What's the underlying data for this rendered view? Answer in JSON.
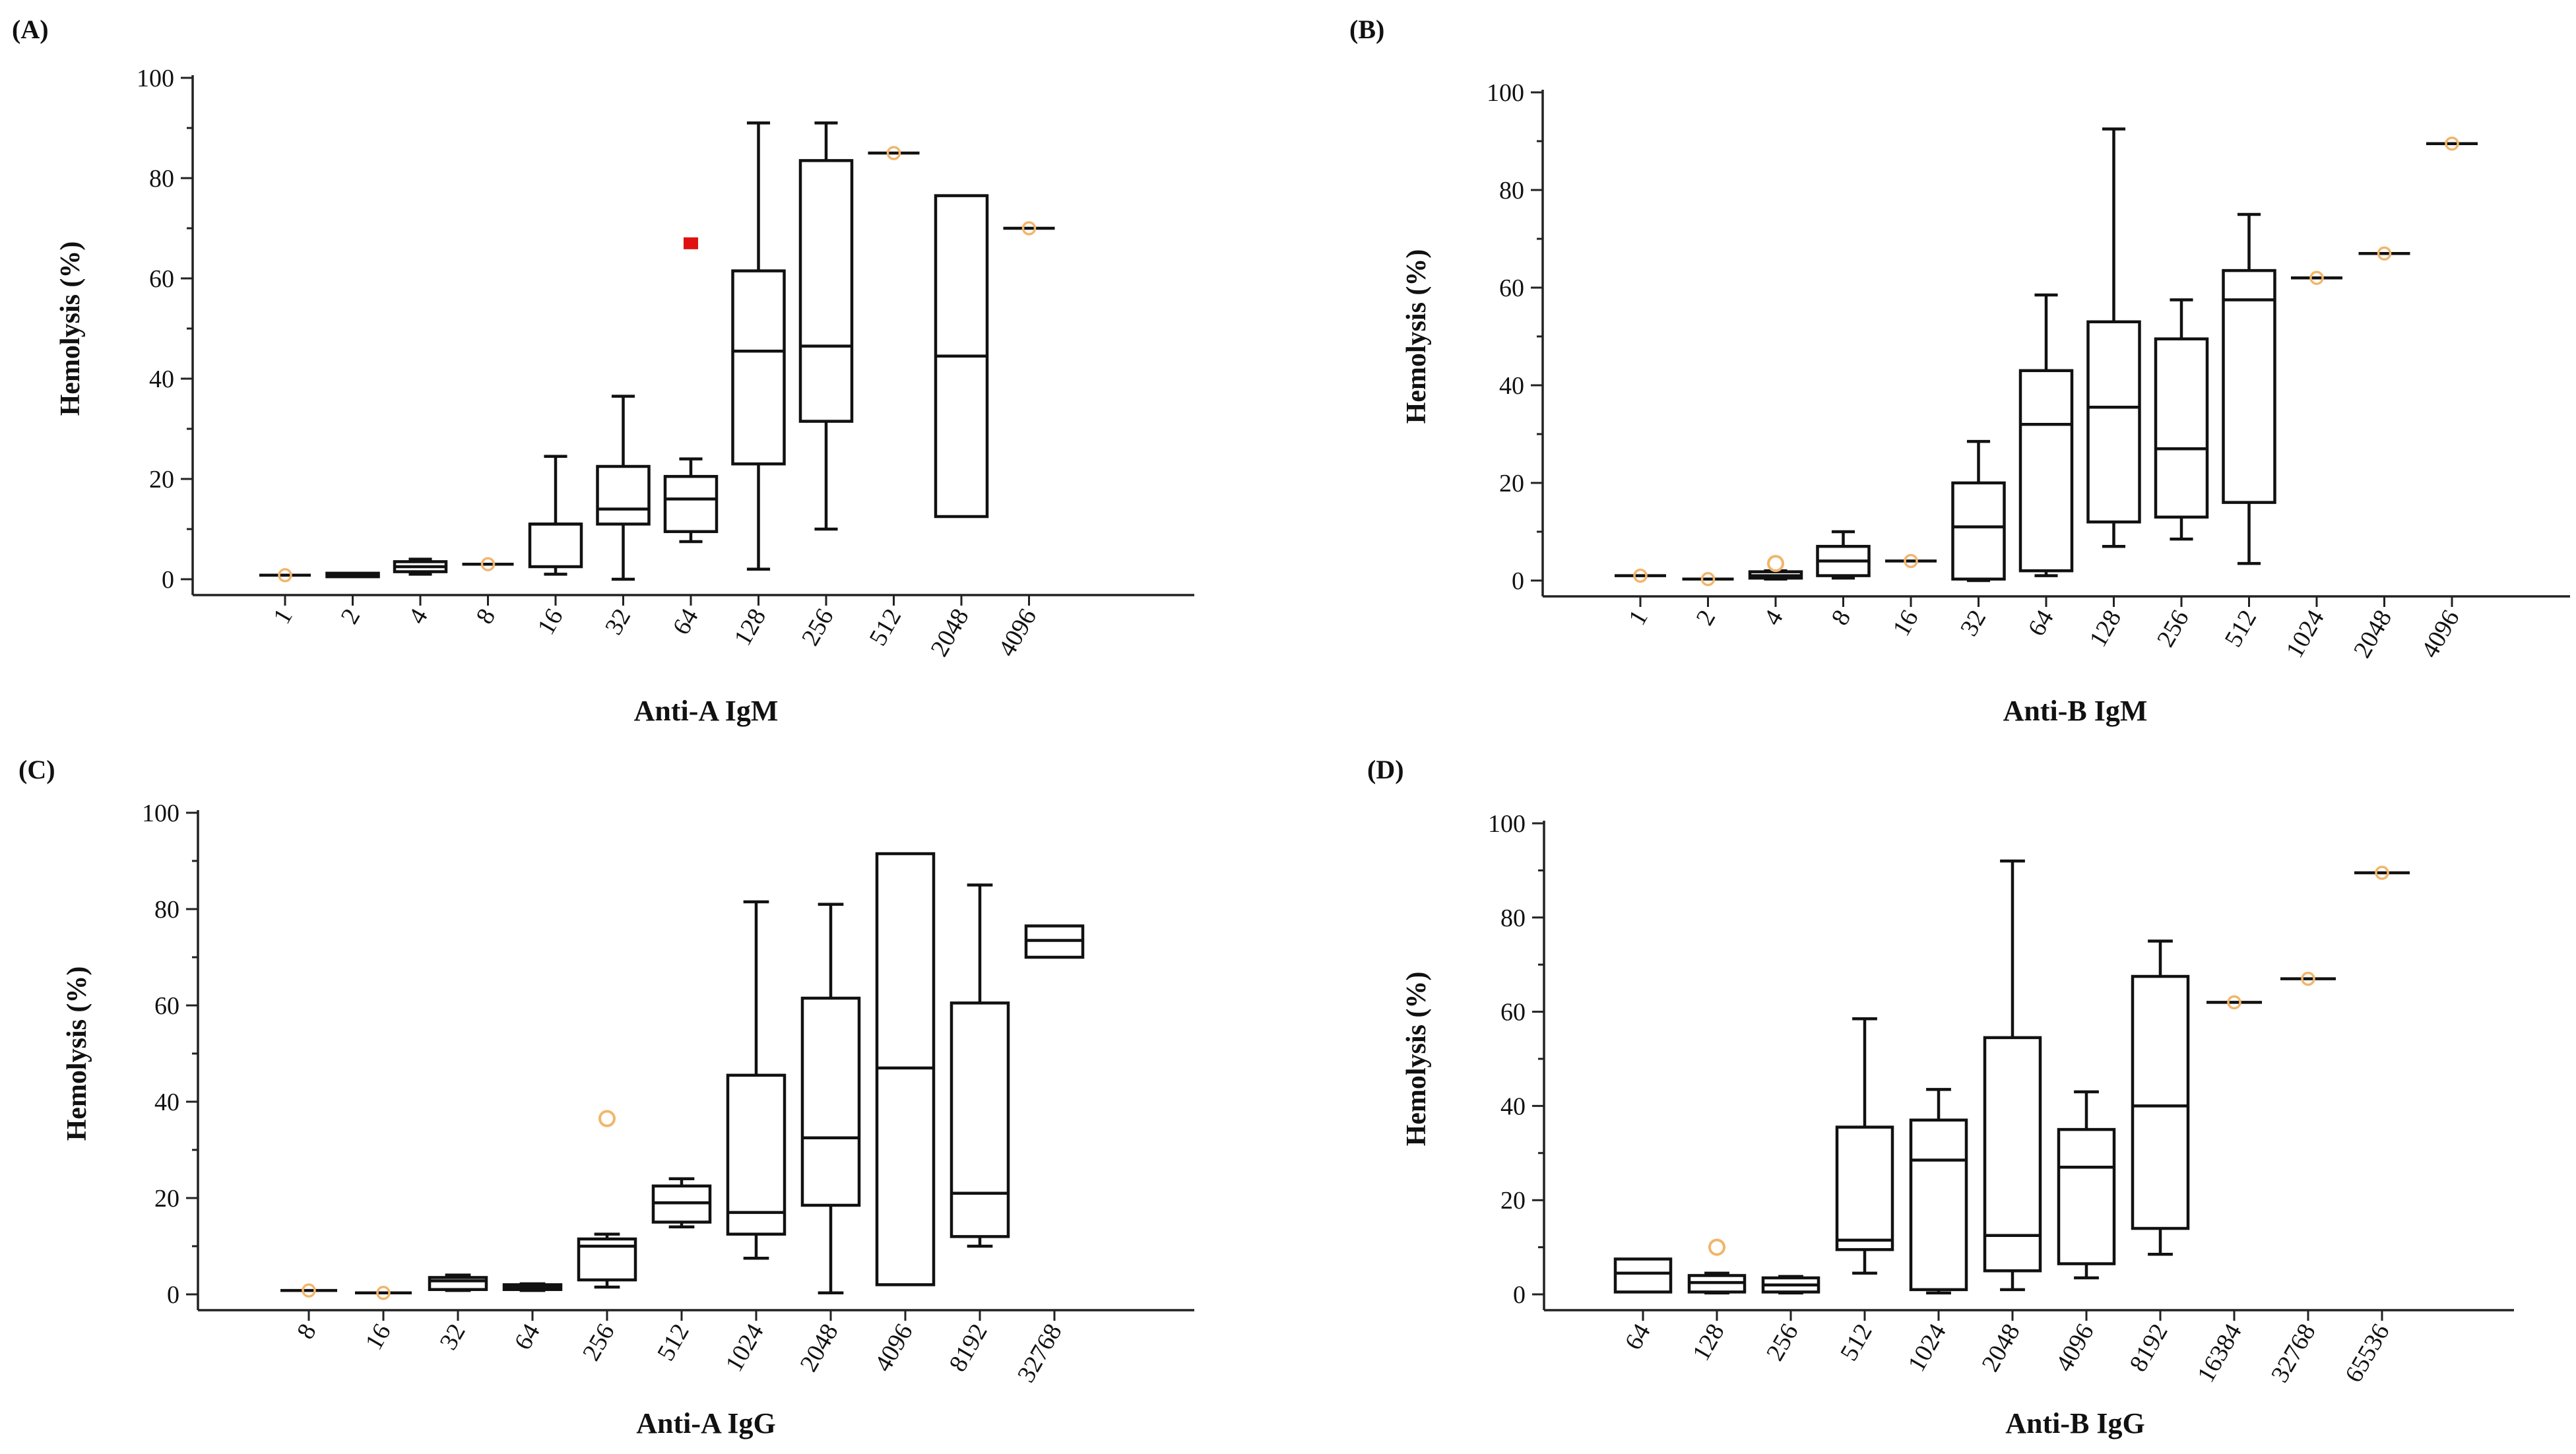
{
  "chart_data": [
    {
      "type": "box",
      "panel_label": "(A)",
      "xlabel": "Anti-A IgM",
      "ylabel": "Hemolysis (%)",
      "ylim": [
        0,
        100
      ],
      "yticks": [
        "0",
        "20",
        "40",
        "60",
        "80",
        "100"
      ],
      "categories": [
        "1",
        "2",
        "4",
        "8",
        "16",
        "32",
        "64",
        "128",
        "256",
        "512",
        "2048",
        "4096"
      ],
      "boxes": [
        {
          "min": 0.8,
          "q1": 0.8,
          "median": 0.8,
          "q3": 0.8,
          "max": 0.8,
          "single": true
        },
        {
          "min": 0.5,
          "q1": 0.5,
          "median": 0.8,
          "q3": 1.2,
          "max": 1.2
        },
        {
          "min": 1.0,
          "q1": 1.5,
          "median": 2.5,
          "q3": 3.5,
          "max": 4.0
        },
        {
          "min": 3.0,
          "q1": 3.0,
          "median": 3.0,
          "q3": 3.0,
          "max": 3.0,
          "single": true
        },
        {
          "min": 1.0,
          "q1": 2.5,
          "median": 11.0,
          "q3": 11.0,
          "max": 24.5
        },
        {
          "min": 0.0,
          "q1": 11.0,
          "median": 14.0,
          "q3": 22.5,
          "max": 36.5
        },
        {
          "min": 7.5,
          "q1": 9.5,
          "median": 16.0,
          "q3": 20.5,
          "max": 24.0
        },
        {
          "min": 2.0,
          "q1": 23.0,
          "median": 45.5,
          "q3": 61.5,
          "max": 91.0
        },
        {
          "min": 10.0,
          "q1": 31.5,
          "median": 46.5,
          "q3": 83.5,
          "max": 91.0
        },
        {
          "min": 85.0,
          "q1": 85.0,
          "median": 85.0,
          "q3": 85.0,
          "max": 85.0,
          "single": true
        },
        {
          "min": 12.5,
          "q1": 12.5,
          "median": 44.5,
          "q3": 76.5,
          "max": 76.5
        },
        {
          "min": 70.0,
          "q1": 70.0,
          "median": 70.0,
          "q3": 70.0,
          "max": 70.0,
          "single": true
        }
      ],
      "outliers": [
        {
          "category": "64",
          "value": 67,
          "style": "far"
        }
      ]
    },
    {
      "type": "box",
      "panel_label": "(B)",
      "xlabel": "Anti-B IgM",
      "ylabel": "Hemolysis (%)",
      "ylim": [
        0,
        100
      ],
      "yticks": [
        "0",
        "20",
        "40",
        "60",
        "80",
        "100"
      ],
      "categories": [
        "1",
        "2",
        "4",
        "8",
        "16",
        "32",
        "64",
        "128",
        "256",
        "512",
        "1024",
        "2048",
        "4096"
      ],
      "boxes": [
        {
          "min": 1.0,
          "q1": 1.0,
          "median": 1.0,
          "q3": 1.0,
          "max": 1.0,
          "single": true
        },
        {
          "min": 0.3,
          "q1": 0.3,
          "median": 0.3,
          "q3": 0.3,
          "max": 0.3,
          "single": true
        },
        {
          "min": 0.3,
          "q1": 0.5,
          "median": 1.0,
          "q3": 1.8,
          "max": 2.0
        },
        {
          "min": 0.5,
          "q1": 1.0,
          "median": 4.0,
          "q3": 7.0,
          "max": 10.0
        },
        {
          "min": 4.0,
          "q1": 4.0,
          "median": 4.0,
          "q3": 4.0,
          "max": 4.0,
          "single": true
        },
        {
          "min": 0.0,
          "q1": 0.3,
          "median": 11.0,
          "q3": 20.0,
          "max": 28.5
        },
        {
          "min": 1.0,
          "q1": 2.0,
          "median": 32.0,
          "q3": 43.0,
          "max": 58.5
        },
        {
          "min": 7.0,
          "q1": 12.0,
          "median": 35.5,
          "q3": 53.0,
          "max": 92.5
        },
        {
          "min": 8.5,
          "q1": 13.0,
          "median": 27.0,
          "q3": 49.5,
          "max": 57.5
        },
        {
          "min": 3.5,
          "q1": 16.0,
          "median": 57.5,
          "q3": 63.5,
          "max": 75.0
        },
        {
          "min": 62.0,
          "q1": 62.0,
          "median": 62.0,
          "q3": 62.0,
          "max": 62.0,
          "single": true
        },
        {
          "min": 67.0,
          "q1": 67.0,
          "median": 67.0,
          "q3": 67.0,
          "max": 67.0,
          "single": true
        },
        {
          "min": 89.5,
          "q1": 89.5,
          "median": 89.5,
          "q3": 89.5,
          "max": 89.5,
          "single": true
        }
      ],
      "outliers": [
        {
          "category": "4",
          "value": 3.5,
          "style": "near"
        }
      ]
    },
    {
      "type": "box",
      "panel_label": "(C)",
      "xlabel": "Anti-A IgG",
      "ylabel": "Hemolysis (%)",
      "ylim": [
        0,
        100
      ],
      "yticks": [
        "0",
        "20",
        "40",
        "60",
        "80",
        "100"
      ],
      "categories": [
        "8",
        "16",
        "32",
        "64",
        "256",
        "512",
        "1024",
        "2048",
        "4096",
        "8192",
        "32768"
      ],
      "boxes": [
        {
          "min": 0.8,
          "q1": 0.8,
          "median": 0.8,
          "q3": 0.8,
          "max": 0.8,
          "single": true
        },
        {
          "min": 0.3,
          "q1": 0.3,
          "median": 0.3,
          "q3": 0.3,
          "max": 0.3,
          "single": true
        },
        {
          "min": 0.8,
          "q1": 1.0,
          "median": 2.8,
          "q3": 3.5,
          "max": 4.0
        },
        {
          "min": 0.8,
          "q1": 1.0,
          "median": 1.5,
          "q3": 2.0,
          "max": 2.2
        },
        {
          "min": 1.5,
          "q1": 3.0,
          "median": 10.0,
          "q3": 11.5,
          "max": 12.5
        },
        {
          "min": 14.0,
          "q1": 15.0,
          "median": 19.0,
          "q3": 22.5,
          "max": 24.0
        },
        {
          "min": 7.5,
          "q1": 12.5,
          "median": 17.0,
          "q3": 45.5,
          "max": 81.5
        },
        {
          "min": 0.3,
          "q1": 18.5,
          "median": 32.5,
          "q3": 61.5,
          "max": 81.0
        },
        {
          "min": 2.0,
          "q1": 2.0,
          "median": 47.0,
          "q3": 91.5,
          "max": 91.5
        },
        {
          "min": 10.0,
          "q1": 12.0,
          "median": 21.0,
          "q3": 60.5,
          "max": 85.0
        },
        {
          "min": 70.0,
          "q1": 70.0,
          "median": 73.5,
          "q3": 76.5,
          "max": 76.5
        }
      ],
      "outliers": [
        {
          "category": "256",
          "value": 36.5,
          "style": "near"
        }
      ]
    },
    {
      "type": "box",
      "panel_label": "(D)",
      "xlabel": "Anti-B IgG",
      "ylabel": "Hemolysis (%)",
      "ylim": [
        0,
        100
      ],
      "yticks": [
        "0",
        "20",
        "40",
        "60",
        "80",
        "100"
      ],
      "categories": [
        "64",
        "128",
        "256",
        "512",
        "1024",
        "2048",
        "4096",
        "8192",
        "16384",
        "32768",
        "65536"
      ],
      "boxes": [
        {
          "min": 0.5,
          "q1": 0.5,
          "median": 4.5,
          "q3": 7.5,
          "max": 7.5
        },
        {
          "min": 0.3,
          "q1": 0.5,
          "median": 2.5,
          "q3": 4.0,
          "max": 4.5
        },
        {
          "min": 0.3,
          "q1": 0.5,
          "median": 2.0,
          "q3": 3.5,
          "max": 3.8
        },
        {
          "min": 4.5,
          "q1": 9.5,
          "median": 11.5,
          "q3": 35.5,
          "max": 58.5
        },
        {
          "min": 0.3,
          "q1": 1.0,
          "median": 28.5,
          "q3": 37.0,
          "max": 43.5
        },
        {
          "min": 1.0,
          "q1": 5.0,
          "median": 12.5,
          "q3": 54.5,
          "max": 92.0
        },
        {
          "min": 3.5,
          "q1": 6.5,
          "median": 27.0,
          "q3": 35.0,
          "max": 43.0
        },
        {
          "min": 8.5,
          "q1": 14.0,
          "median": 40.0,
          "q3": 67.5,
          "max": 75.0
        },
        {
          "min": 62.0,
          "q1": 62.0,
          "median": 62.0,
          "q3": 62.0,
          "max": 62.0,
          "single": true
        },
        {
          "min": 67.0,
          "q1": 67.0,
          "median": 67.0,
          "q3": 67.0,
          "max": 67.0,
          "single": true
        },
        {
          "min": 89.5,
          "q1": 89.5,
          "median": 89.5,
          "q3": 89.5,
          "max": 89.5,
          "single": true
        }
      ],
      "outliers": [
        {
          "category": "128",
          "value": 10,
          "style": "near"
        }
      ]
    }
  ],
  "colors": {
    "near_outlier": "#f2b56b",
    "far_outlier": "#e01010",
    "ink": "#111111",
    "background": "#ffffff"
  }
}
